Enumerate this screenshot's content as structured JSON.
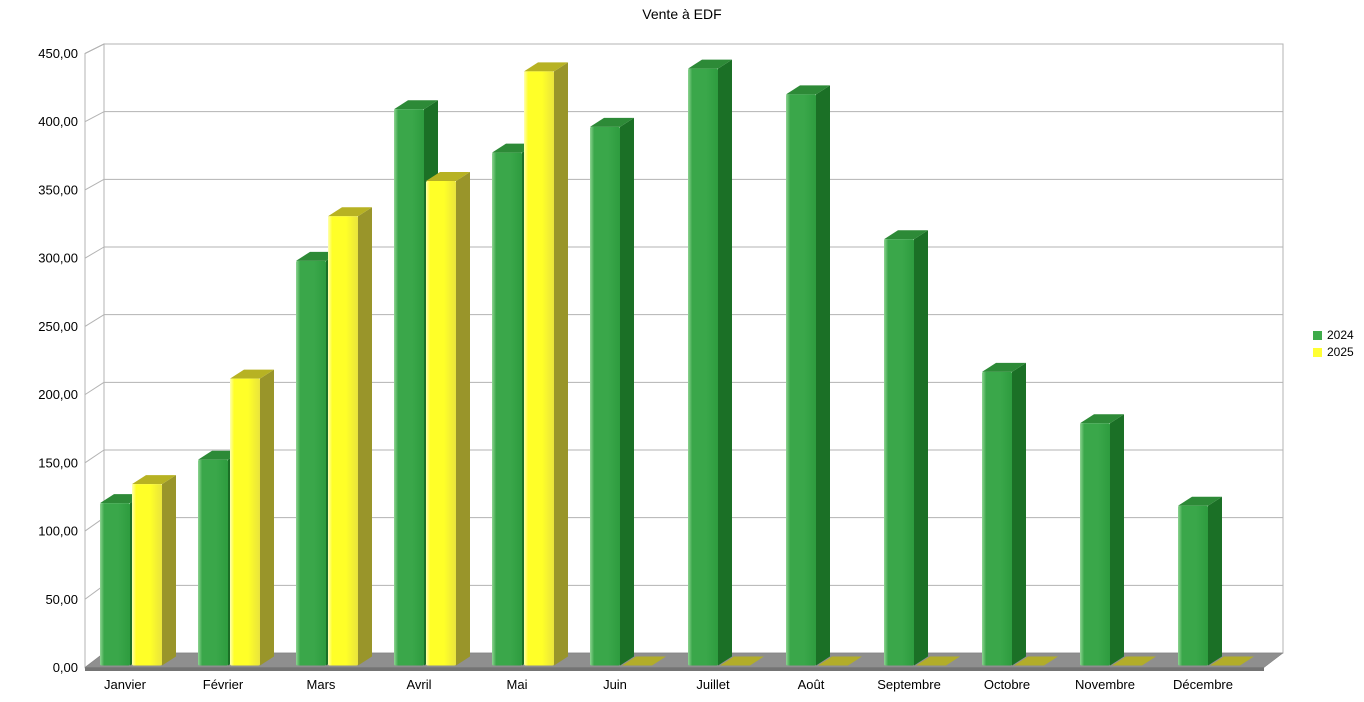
{
  "title": "Vente à EDF",
  "chart_data": {
    "type": "bar",
    "style": "3d-column",
    "title": "Vente à EDF",
    "categories": [
      "Janvier",
      "Février",
      "Mars",
      "Avril",
      "Mai",
      "Juin",
      "Juillet",
      "Août",
      "Septembre",
      "Octobre",
      "Novembre",
      "Décembre"
    ],
    "series": [
      {
        "name": "2024",
        "color": "#3eab4a",
        "values": [
          120,
          152,
          299,
          411,
          379,
          398,
          441,
          422,
          315,
          217,
          179,
          118
        ]
      },
      {
        "name": "2025",
        "color": "#ffff33",
        "values": [
          134,
          212,
          332,
          358,
          439,
          0,
          0,
          0,
          0,
          0,
          0,
          0
        ]
      }
    ],
    "xlabel": "",
    "ylabel": "",
    "ylim": [
      0,
      450
    ],
    "ytick_step": 50,
    "ytick_labels": [
      "0,00",
      "50,00",
      "100,00",
      "150,00",
      "200,00",
      "250,00",
      "300,00",
      "350,00",
      "400,00",
      "450,00"
    ],
    "grid": true,
    "legend_position": "right"
  },
  "colors": {
    "green_front_light": "#8ed492",
    "green_front_mid": "#3aa74a",
    "green_front_dark": "#2e9c3f",
    "green_side": "#1b7026",
    "green_top": "#2d8a37",
    "yellow_front_light": "#ffffb0",
    "yellow_front_mid": "#ffff28",
    "yellow_front_dark": "#e9e43c",
    "yellow_side": "#99952a",
    "yellow_top": "#b7b223",
    "yellow_zero_sliver": "#b2ad2a",
    "floor_top": "#8f8f8f",
    "floor_front": "#747474",
    "gridline": "#b3b3b3",
    "wall_border": "#b3b3b3",
    "text": "#000000"
  }
}
